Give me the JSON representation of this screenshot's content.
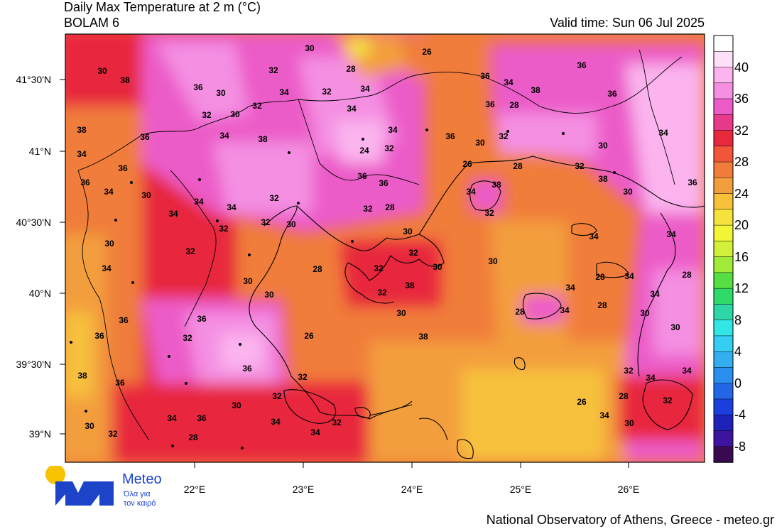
{
  "header": {
    "title": "Daily Max Temperature at 2 m (°C)",
    "subtitle": "BOLAM 6",
    "valid_time": "Valid time: Sun 06 Jul 2025"
  },
  "map": {
    "lat_labels": [
      "41°30'N",
      "41°N",
      "40°30'N",
      "40°N",
      "39°30'N",
      "39°N"
    ],
    "lon_labels": [
      "22°E",
      "23°E",
      "24°E",
      "25°E",
      "26°E"
    ],
    "contour_labels": [
      "30",
      "26",
      "36",
      "30",
      "32",
      "28",
      "38",
      "36",
      "34",
      "36",
      "30",
      "34",
      "32",
      "34",
      "38",
      "36",
      "32",
      "34",
      "36",
      "28",
      "32",
      "30",
      "34",
      "36",
      "30",
      "32",
      "34",
      "38",
      "36",
      "34",
      "38",
      "24",
      "32",
      "30",
      "34",
      "36",
      "36",
      "26",
      "28",
      "32",
      "38",
      "36",
      "34",
      "30",
      "32",
      "36",
      "34",
      "38",
      "36",
      "30",
      "34",
      "34",
      "32",
      "28",
      "32",
      "34",
      "32",
      "32",
      "30",
      "30",
      "34",
      "34",
      "30",
      "32",
      "32",
      "30",
      "34",
      "28",
      "32",
      "30",
      "28",
      "34",
      "28",
      "30",
      "30",
      "32",
      "38",
      "34",
      "34",
      "36",
      "36",
      "30",
      "28",
      "34",
      "28",
      "30",
      "36",
      "26",
      "38",
      "30",
      "32",
      "36",
      "32",
      "38",
      "32",
      "34",
      "34",
      "36",
      "32",
      "26",
      "28",
      "32",
      "30",
      "34",
      "36",
      "34",
      "32",
      "34",
      "30",
      "30",
      "32",
      "28",
      "34"
    ]
  },
  "colorbar": {
    "labels": [
      "40",
      "36",
      "32",
      "28",
      "24",
      "20",
      "16",
      "12",
      "8",
      "4",
      "0",
      "-4",
      "-8"
    ],
    "colors": [
      "#ffffff",
      "#fde0f7",
      "#fbb4ee",
      "#f48fe2",
      "#ec5bc8",
      "#e83a8a",
      "#e8283c",
      "#f2563a",
      "#f07d3a",
      "#f39e3c",
      "#f7c13c",
      "#f5e23c",
      "#f2f536",
      "#d2f03a",
      "#a2ea3a",
      "#57de43",
      "#2fd96a",
      "#2dd6a6",
      "#33e6e6",
      "#35cdf2",
      "#33aff0",
      "#2b8ff0",
      "#2367e6",
      "#1a3fde",
      "#1e22b8",
      "#3d14a0",
      "#3a0a50"
    ]
  },
  "logo": {
    "name": "Meteo",
    "tagline_1": "Όλα για",
    "tagline_2": "τον καιρό"
  },
  "footer": "National Observatory of Athens, Greece - meteo.gr"
}
